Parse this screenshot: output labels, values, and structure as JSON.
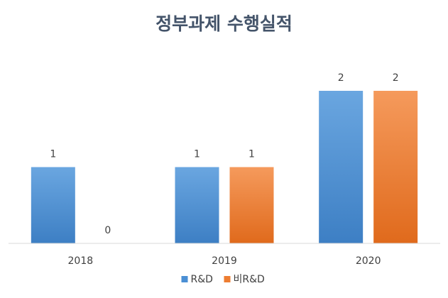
{
  "title": "정부과제 수행실적",
  "chart_data": {
    "type": "bar",
    "title": "정부과제 수행실적",
    "categories": [
      "2018",
      "2019",
      "2020"
    ],
    "series": [
      {
        "name": "R&D",
        "values": [
          1,
          1,
          2
        ],
        "color": "#4a8fd4"
      },
      {
        "name": "비R&D",
        "values": [
          0,
          1,
          2
        ],
        "color": "#ed7d31"
      }
    ],
    "ylim": [
      0,
      2
    ],
    "grid": false,
    "data_labels": true,
    "legend_position": "bottom"
  }
}
